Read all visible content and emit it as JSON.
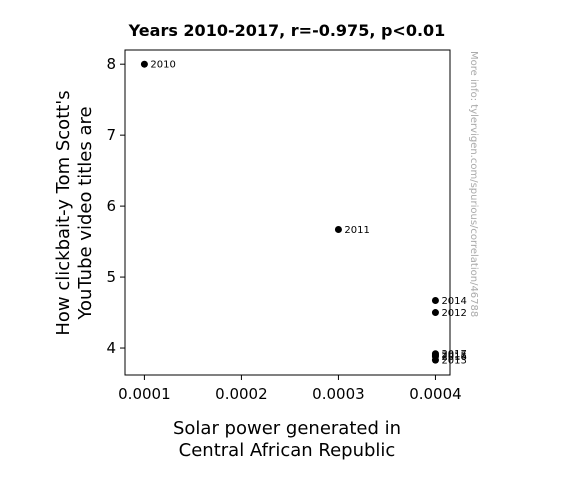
{
  "chart_data": {
    "type": "scatter",
    "title": "Years 2010-2017, r=-0.975, p<0.01",
    "xlabel_lines": [
      "Solar power generated in",
      "Central African Republic"
    ],
    "ylabel_lines": [
      "How clickbait-y Tom Scott's",
      "YouTube video titles are"
    ],
    "xlim": [
      8e-05,
      0.000415
    ],
    "ylim": [
      3.62,
      8.2
    ],
    "xticks": [
      {
        "value": 0.0001,
        "label": "0.0001"
      },
      {
        "value": 0.0002,
        "label": "0.0002"
      },
      {
        "value": 0.0003,
        "label": "0.0003"
      },
      {
        "value": 0.0004,
        "label": "0.0004"
      }
    ],
    "yticks": [
      {
        "value": 4,
        "label": "4"
      },
      {
        "value": 5,
        "label": "5"
      },
      {
        "value": 6,
        "label": "6"
      },
      {
        "value": 7,
        "label": "7"
      },
      {
        "value": 8,
        "label": "8"
      }
    ],
    "points": [
      {
        "x": 0.0001,
        "y": 8.0,
        "label": "2010"
      },
      {
        "x": 0.0003,
        "y": 5.67,
        "label": "2011"
      },
      {
        "x": 0.0004,
        "y": 4.5,
        "label": "2012"
      },
      {
        "x": 0.0004,
        "y": 3.83,
        "label": "2013"
      },
      {
        "x": 0.0004,
        "y": 4.67,
        "label": "2014"
      },
      {
        "x": 0.0004,
        "y": 3.9,
        "label": "2015"
      },
      {
        "x": 0.0004,
        "y": 3.88,
        "label": "2016"
      },
      {
        "x": 0.0004,
        "y": 3.92,
        "label": "2017"
      }
    ],
    "grid": false,
    "marker_color": "#000000",
    "watermark": "More info: tylervigen.com/spurious/correlation/46788"
  }
}
